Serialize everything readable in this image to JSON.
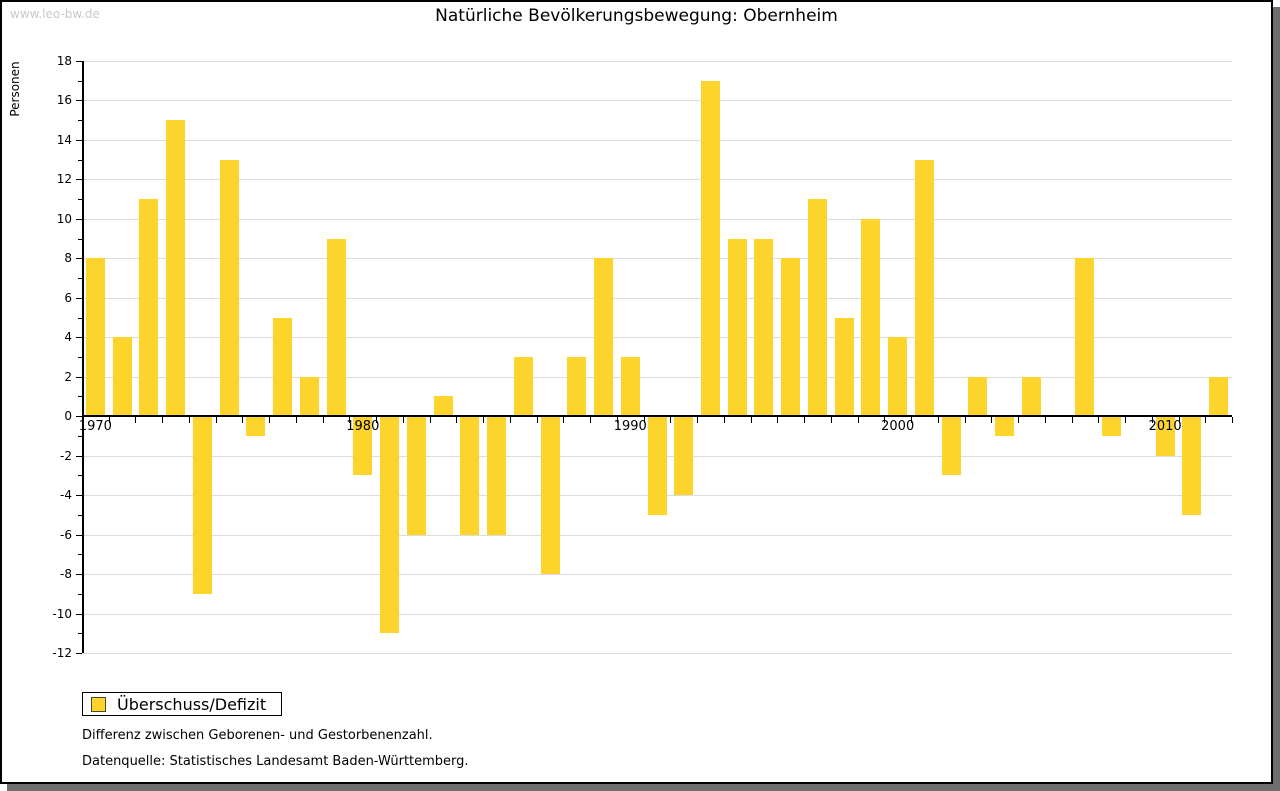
{
  "watermark": "www.leo-bw.de",
  "title": "Natürliche Bevölkerungsbewegung: Obernheim",
  "legend": {
    "label": "Überschuss/Defizit",
    "swatch_color": "#fcd42c"
  },
  "notes": [
    "Differenz zwischen Geborenen- und Gestorbenenzahl.",
    "Datenquelle: Statistisches Landesamt Baden-Württemberg."
  ],
  "colors": {
    "bar": "#fcd42c",
    "grid": "#dcdcdc",
    "axis": "#000000",
    "watermark": "#c9c9c9",
    "shadow": "#6e6e6e"
  },
  "chart_data": {
    "type": "bar",
    "title": "Natürliche Bevölkerungsbewegung: Obernheim",
    "xlabel": "",
    "ylabel": "Personen",
    "series_name": "Überschuss/Defizit",
    "categories": [
      1970,
      1971,
      1972,
      1973,
      1974,
      1975,
      1976,
      1977,
      1978,
      1979,
      1980,
      1981,
      1982,
      1983,
      1984,
      1985,
      1986,
      1987,
      1988,
      1989,
      1990,
      1991,
      1992,
      1993,
      1994,
      1995,
      1996,
      1997,
      1998,
      1999,
      2000,
      2001,
      2002,
      2003,
      2004,
      2005,
      2006,
      2007,
      2008,
      2009,
      2010,
      2011,
      2012
    ],
    "values": [
      8,
      4,
      11,
      15,
      -9,
      13,
      -1,
      5,
      2,
      9,
      -3,
      -11,
      -6,
      1,
      -6,
      -6,
      3,
      -8,
      3,
      8,
      3,
      -5,
      -4,
      17,
      9,
      9,
      8,
      11,
      5,
      10,
      4,
      13,
      -3,
      2,
      -1,
      2,
      0,
      8,
      -1,
      0,
      -2,
      -5,
      2
    ],
    "ylim": [
      -12,
      18
    ],
    "ytick_step": 2,
    "ytick_minor_step": 1,
    "x_decade_labels": [
      1970,
      1980,
      1990,
      2000,
      2010
    ],
    "bar_color": "#fcd42c",
    "grid": true,
    "legend_position": "bottom-left"
  }
}
